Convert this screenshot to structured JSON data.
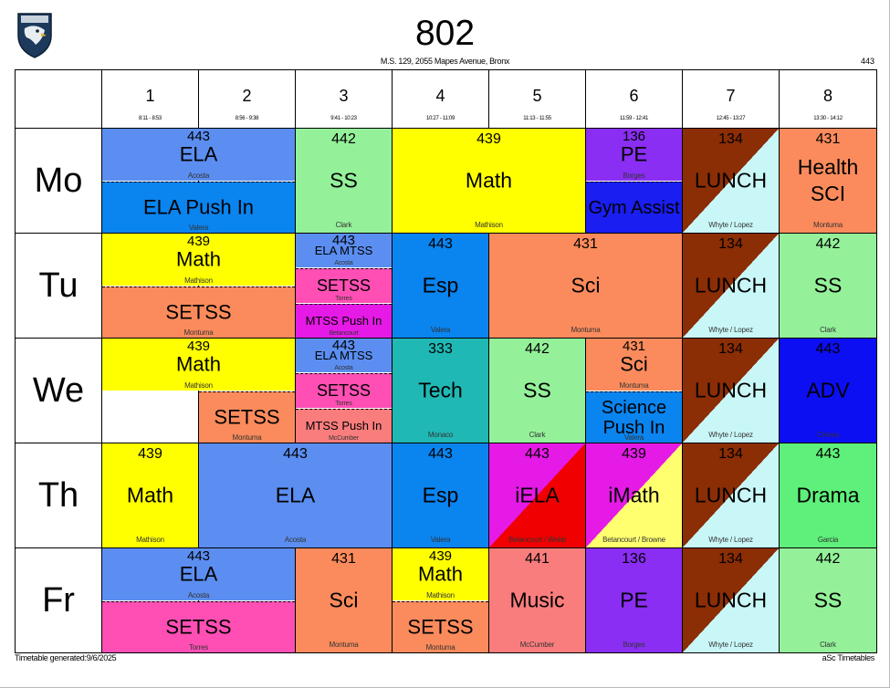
{
  "header": {
    "title": "802",
    "subtitle": "M.S. 129, 2055 Mapes Avenue, Bronx",
    "page_number": "443"
  },
  "periods": [
    {
      "num": "1",
      "time": "8:11 - 8:53"
    },
    {
      "num": "2",
      "time": "8:56 - 9:38"
    },
    {
      "num": "3",
      "time": "9:41 - 10:23"
    },
    {
      "num": "4",
      "time": "10:27 - 11:09"
    },
    {
      "num": "5",
      "time": "11:13 - 11:55"
    },
    {
      "num": "6",
      "time": "11:59 - 12:41"
    },
    {
      "num": "7",
      "time": "12:45 - 13:27"
    },
    {
      "num": "8",
      "time": "13:30 - 14:12"
    }
  ],
  "days": [
    "Mo",
    "Tu",
    "We",
    "Th",
    "Fr"
  ],
  "lessons": [
    {
      "day": 0,
      "p": 0,
      "span": 2,
      "slot": 0,
      "of": 2,
      "room": "443",
      "subject": "ELA",
      "teacher": "Acosta",
      "color": "#5b8ef0"
    },
    {
      "day": 0,
      "p": 0,
      "span": 2,
      "slot": 1,
      "of": 2,
      "room": "",
      "subject": "ELA Push In",
      "teacher": "Valera",
      "color": "#0a84ef"
    },
    {
      "day": 0,
      "p": 2,
      "span": 1,
      "slot": 0,
      "of": 1,
      "room": "442",
      "subject": "SS",
      "teacher": "Clark",
      "color": "#94f19a"
    },
    {
      "day": 0,
      "p": 3,
      "span": 2,
      "slot": 0,
      "of": 1,
      "room": "439",
      "subject": "Math",
      "teacher": "Mathison",
      "color": "#ffff00"
    },
    {
      "day": 0,
      "p": 5,
      "span": 1,
      "slot": 0,
      "of": 2,
      "room": "136",
      "subject": "PE",
      "teacher": "Borges",
      "color": "#8a2ef3"
    },
    {
      "day": 0,
      "p": 5,
      "span": 1,
      "slot": 1,
      "of": 2,
      "room": "",
      "subject": "Gym Assist",
      "teacher": "",
      "color": "#1a1ef0"
    },
    {
      "day": 0,
      "p": 6,
      "span": 1,
      "slot": 0,
      "of": 1,
      "room": "134",
      "subject": "LUNCH",
      "teacher": "Whyte / Lopez",
      "color": "#8b2d05",
      "color2": "#c9f7f7"
    },
    {
      "day": 0,
      "p": 7,
      "span": 1,
      "slot": 0,
      "of": 1,
      "room": "431",
      "subject": "Health SCI",
      "teacher": "Montuma",
      "color": "#fb8b5c"
    },
    {
      "day": 1,
      "p": 0,
      "span": 2,
      "slot": 0,
      "of": 2,
      "room": "439",
      "subject": "Math",
      "teacher": "Mathison",
      "color": "#ffff00"
    },
    {
      "day": 1,
      "p": 0,
      "span": 2,
      "slot": 1,
      "of": 2,
      "room": "",
      "subject": "SETSS",
      "teacher": "Montuma",
      "color": "#fb8b5c"
    },
    {
      "day": 1,
      "p": 2,
      "span": 1,
      "slot": 0,
      "of": 3,
      "room": "443",
      "subject": "ELA MTSS",
      "teacher": "Acosta",
      "color": "#5b8ef0"
    },
    {
      "day": 1,
      "p": 2,
      "span": 1,
      "slot": 1,
      "of": 3,
      "room": "",
      "subject": "SETSS",
      "teacher": "Torres",
      "color": "#ff4fb5"
    },
    {
      "day": 1,
      "p": 2,
      "span": 1,
      "slot": 2,
      "of": 3,
      "room": "",
      "subject": "MTSS Push In",
      "teacher": "Betancourt",
      "color": "#e51ae6"
    },
    {
      "day": 1,
      "p": 3,
      "span": 1,
      "slot": 0,
      "of": 1,
      "room": "443",
      "subject": "Esp",
      "teacher": "Valera",
      "color": "#0a84ef"
    },
    {
      "day": 1,
      "p": 4,
      "span": 2,
      "slot": 0,
      "of": 1,
      "room": "431",
      "subject": "Sci",
      "teacher": "Montuma",
      "color": "#fb8b5c"
    },
    {
      "day": 1,
      "p": 6,
      "span": 1,
      "slot": 0,
      "of": 1,
      "room": "134",
      "subject": "LUNCH",
      "teacher": "Whyte / Lopez",
      "color": "#8b2d05",
      "color2": "#c9f7f7"
    },
    {
      "day": 1,
      "p": 7,
      "span": 1,
      "slot": 0,
      "of": 1,
      "room": "442",
      "subject": "SS",
      "teacher": "Clark",
      "color": "#94f19a"
    },
    {
      "day": 2,
      "p": 0,
      "span": 2,
      "slot": 0,
      "of": 2,
      "room": "439",
      "subject": "Math",
      "teacher": "Mathison",
      "color": "#ffff00"
    },
    {
      "day": 2,
      "p": 1,
      "span": 1,
      "slot": 1,
      "of": 2,
      "room": "",
      "subject": "SETSS",
      "teacher": "Montuma",
      "color": "#fb8b5c"
    },
    {
      "day": 2,
      "p": 2,
      "span": 1,
      "slot": 0,
      "of": 3,
      "room": "443",
      "subject": "ELA MTSS",
      "teacher": "Acosta",
      "color": "#5b8ef0"
    },
    {
      "day": 2,
      "p": 2,
      "span": 1,
      "slot": 1,
      "of": 3,
      "room": "",
      "subject": "SETSS",
      "teacher": "Torres",
      "color": "#ff4fb5"
    },
    {
      "day": 2,
      "p": 2,
      "span": 1,
      "slot": 2,
      "of": 3,
      "room": "",
      "subject": "MTSS Push In",
      "teacher": "McCumber",
      "color": "#fa7d7d"
    },
    {
      "day": 2,
      "p": 3,
      "span": 1,
      "slot": 0,
      "of": 1,
      "room": "333",
      "subject": "Tech",
      "teacher": "Monaco",
      "color": "#20b8b5"
    },
    {
      "day": 2,
      "p": 4,
      "span": 1,
      "slot": 0,
      "of": 1,
      "room": "442",
      "subject": "SS",
      "teacher": "Clark",
      "color": "#94f19a"
    },
    {
      "day": 2,
      "p": 5,
      "span": 1,
      "slot": 0,
      "of": 2,
      "room": "431",
      "subject": "Sci",
      "teacher": "Montuma",
      "color": "#fb8b5c"
    },
    {
      "day": 2,
      "p": 5,
      "span": 1,
      "slot": 1,
      "of": 2,
      "room": "",
      "subject": "Science Push In",
      "teacher": "Valera",
      "color": "#0a84ef"
    },
    {
      "day": 2,
      "p": 6,
      "span": 1,
      "slot": 0,
      "of": 1,
      "room": "134",
      "subject": "LUNCH",
      "teacher": "Whyte / Lopez",
      "color": "#8b2d05",
      "color2": "#c9f7f7"
    },
    {
      "day": 2,
      "p": 7,
      "span": 1,
      "slot": 0,
      "of": 1,
      "room": "443",
      "subject": "ADV",
      "teacher": "Chiesa",
      "color": "#0c0ff2"
    },
    {
      "day": 3,
      "p": 0,
      "span": 1,
      "slot": 0,
      "of": 1,
      "room": "439",
      "subject": "Math",
      "teacher": "Mathison",
      "color": "#ffff00"
    },
    {
      "day": 3,
      "p": 1,
      "span": 2,
      "slot": 0,
      "of": 1,
      "room": "443",
      "subject": "ELA",
      "teacher": "Acosta",
      "color": "#5b8ef0"
    },
    {
      "day": 3,
      "p": 3,
      "span": 1,
      "slot": 0,
      "of": 1,
      "room": "443",
      "subject": "Esp",
      "teacher": "Valera",
      "color": "#0a84ef"
    },
    {
      "day": 3,
      "p": 4,
      "span": 1,
      "slot": 0,
      "of": 1,
      "room": "443",
      "subject": "iELA",
      "teacher": "Betancourt / Webb",
      "color": "#e51ae6",
      "color2": "#f00000"
    },
    {
      "day": 3,
      "p": 5,
      "span": 1,
      "slot": 0,
      "of": 1,
      "room": "439",
      "subject": "iMath",
      "teacher": "Betancourt / Browne",
      "color": "#e51ae6",
      "color2": "#ffff70"
    },
    {
      "day": 3,
      "p": 6,
      "span": 1,
      "slot": 0,
      "of": 1,
      "room": "134",
      "subject": "LUNCH",
      "teacher": "Whyte / Lopez",
      "color": "#8b2d05",
      "color2": "#c9f7f7"
    },
    {
      "day": 3,
      "p": 7,
      "span": 1,
      "slot": 0,
      "of": 1,
      "room": "443",
      "subject": "Drama",
      "teacher": "Garcia",
      "color": "#5ef07a"
    },
    {
      "day": 4,
      "p": 0,
      "span": 2,
      "slot": 0,
      "of": 2,
      "room": "443",
      "subject": "ELA",
      "teacher": "Acosta",
      "color": "#5b8ef0"
    },
    {
      "day": 4,
      "p": 0,
      "span": 2,
      "slot": 1,
      "of": 2,
      "room": "",
      "subject": "SETSS",
      "teacher": "Torres",
      "color": "#ff4fb5"
    },
    {
      "day": 4,
      "p": 2,
      "span": 1,
      "slot": 0,
      "of": 1,
      "room": "431",
      "subject": "Sci",
      "teacher": "Montuma",
      "color": "#fb8b5c"
    },
    {
      "day": 4,
      "p": 3,
      "span": 1,
      "slot": 0,
      "of": 2,
      "room": "439",
      "subject": "Math",
      "teacher": "Mathison",
      "color": "#ffff00"
    },
    {
      "day": 4,
      "p": 3,
      "span": 1,
      "slot": 1,
      "of": 2,
      "room": "",
      "subject": "SETSS",
      "teacher": "Montuma",
      "color": "#fb8b5c"
    },
    {
      "day": 4,
      "p": 4,
      "span": 1,
      "slot": 0,
      "of": 1,
      "room": "441",
      "subject": "Music",
      "teacher": "McCumber",
      "color": "#fa7d7d"
    },
    {
      "day": 4,
      "p": 5,
      "span": 1,
      "slot": 0,
      "of": 1,
      "room": "136",
      "subject": "PE",
      "teacher": "Borges",
      "color": "#8a2ef3"
    },
    {
      "day": 4,
      "p": 6,
      "span": 1,
      "slot": 0,
      "of": 1,
      "room": "134",
      "subject": "LUNCH",
      "teacher": "Whyte / Lopez",
      "color": "#8b2d05",
      "color2": "#c9f7f7"
    },
    {
      "day": 4,
      "p": 7,
      "span": 1,
      "slot": 0,
      "of": 1,
      "room": "442",
      "subject": "SS",
      "teacher": "Clark",
      "color": "#94f19a"
    }
  ],
  "footer": {
    "left": "Timetable generated:9/6/2025",
    "right": "aSc Timetables"
  },
  "logo_icon": "eagle-shield-logo"
}
